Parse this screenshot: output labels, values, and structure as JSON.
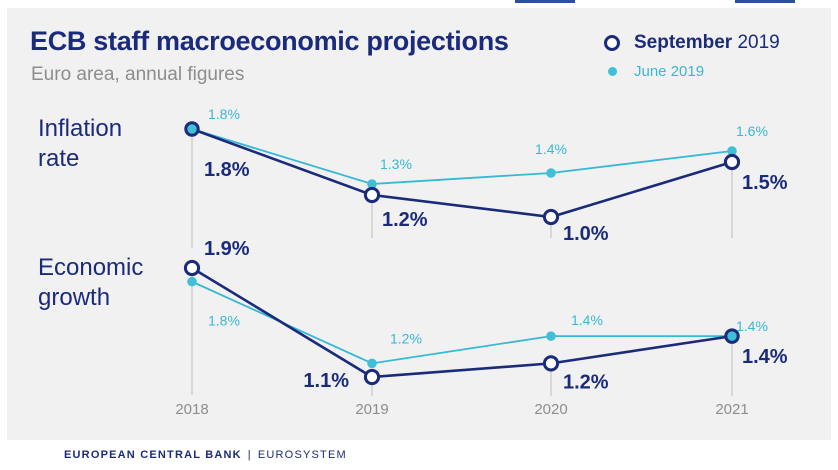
{
  "title": "ECB staff macroeconomic projections",
  "subtitle": "Euro area, annual figures",
  "legend": {
    "september": {
      "month": "September",
      "year": "2019",
      "color": "#1b2b7c"
    },
    "june": {
      "month": "June",
      "year": "2019",
      "color": "#37b8d4"
    }
  },
  "footer": {
    "bank": "EUROPEAN CENTRAL BANK",
    "separator": "|",
    "system": "EUROSYSTEM"
  },
  "chart_data": [
    {
      "type": "line",
      "title": "Inflation rate",
      "title_lines": [
        "Inflation",
        "rate"
      ],
      "unit": "%",
      "categories": [
        "2018",
        "2019",
        "2020",
        "2021"
      ],
      "ylim": [
        0.8,
        2.0
      ],
      "series": [
        {
          "name": "September 2019",
          "values": [
            1.8,
            1.2,
            1.0,
            1.5
          ],
          "labels": [
            "1.8%",
            "1.2%",
            "1.0%",
            "1.5%"
          ]
        },
        {
          "name": "June 2019",
          "values": [
            1.8,
            1.3,
            1.4,
            1.6
          ],
          "labels": [
            "1.8%",
            "1.3%",
            "1.4%",
            "1.6%"
          ]
        }
      ]
    },
    {
      "type": "line",
      "title": "Economic growth",
      "title_lines": [
        "Economic",
        "growth"
      ],
      "unit": "%",
      "categories": [
        "2018",
        "2019",
        "2020",
        "2021"
      ],
      "ylim": [
        0.8,
        2.0
      ],
      "series": [
        {
          "name": "September 2019",
          "values": [
            1.9,
            1.1,
            1.2,
            1.4
          ],
          "labels": [
            "1.9%",
            "1.1%",
            "1.2%",
            "1.4%"
          ]
        },
        {
          "name": "June 2019",
          "values": [
            1.8,
            1.2,
            1.4,
            1.4
          ],
          "labels": [
            "1.8%",
            "1.2%",
            "1.4%",
            "1.4%"
          ]
        }
      ]
    }
  ]
}
